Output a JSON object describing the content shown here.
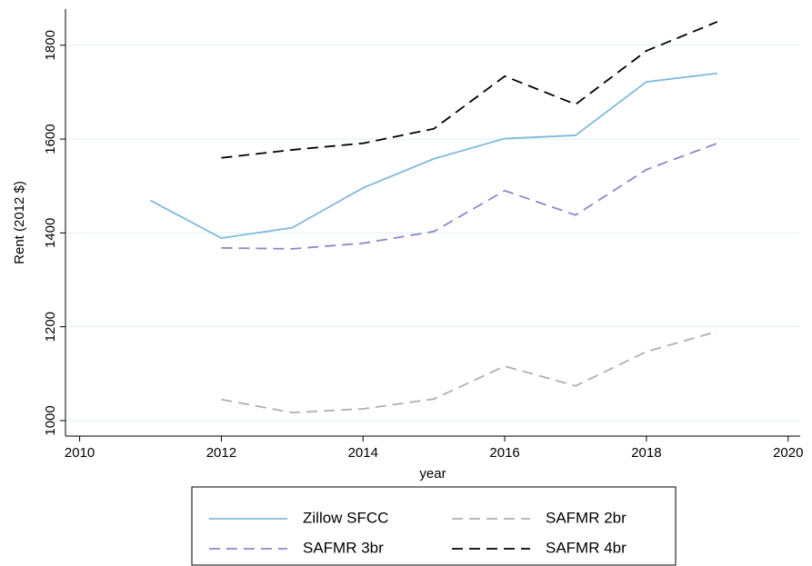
{
  "chart_data": {
    "type": "line",
    "xlabel": "year",
    "ylabel": "Rent (2012 $)",
    "x": [
      2011,
      2012,
      2013,
      2014,
      2015,
      2016,
      2017,
      2018,
      2019
    ],
    "series": [
      {
        "name": "Zillow SFCC",
        "color": "#80b9de",
        "dash": "solid",
        "values": [
          1469,
          1389,
          1411,
          1496,
          1558,
          1601,
          1608,
          1722,
          1740
        ]
      },
      {
        "name": "SAFMR 2br",
        "color": "#b0b0b0",
        "dash": "dashed",
        "values": [
          null,
          1045,
          1017,
          1025,
          1046,
          1116,
          1074,
          1147,
          1190
        ]
      },
      {
        "name": "SAFMR 3br",
        "color": "#8c88c9",
        "dash": "dashed",
        "values": [
          null,
          1368,
          1366,
          1378,
          1403,
          1490,
          1438,
          1535,
          1591
        ]
      },
      {
        "name": "SAFMR 4br",
        "color": "#000000",
        "dash": "dashed",
        "values": [
          null,
          1560,
          1577,
          1591,
          1622,
          1734,
          1674,
          1788,
          1850
        ]
      }
    ],
    "xlim": [
      2009.8,
      2020.17
    ],
    "xticks": [
      2010,
      2012,
      2014,
      2016,
      2018,
      2020
    ],
    "ylim": [
      967,
      1877
    ],
    "yticks": [
      1000,
      1200,
      1400,
      1600,
      1800
    ],
    "grid": true,
    "legend": "bottom"
  }
}
